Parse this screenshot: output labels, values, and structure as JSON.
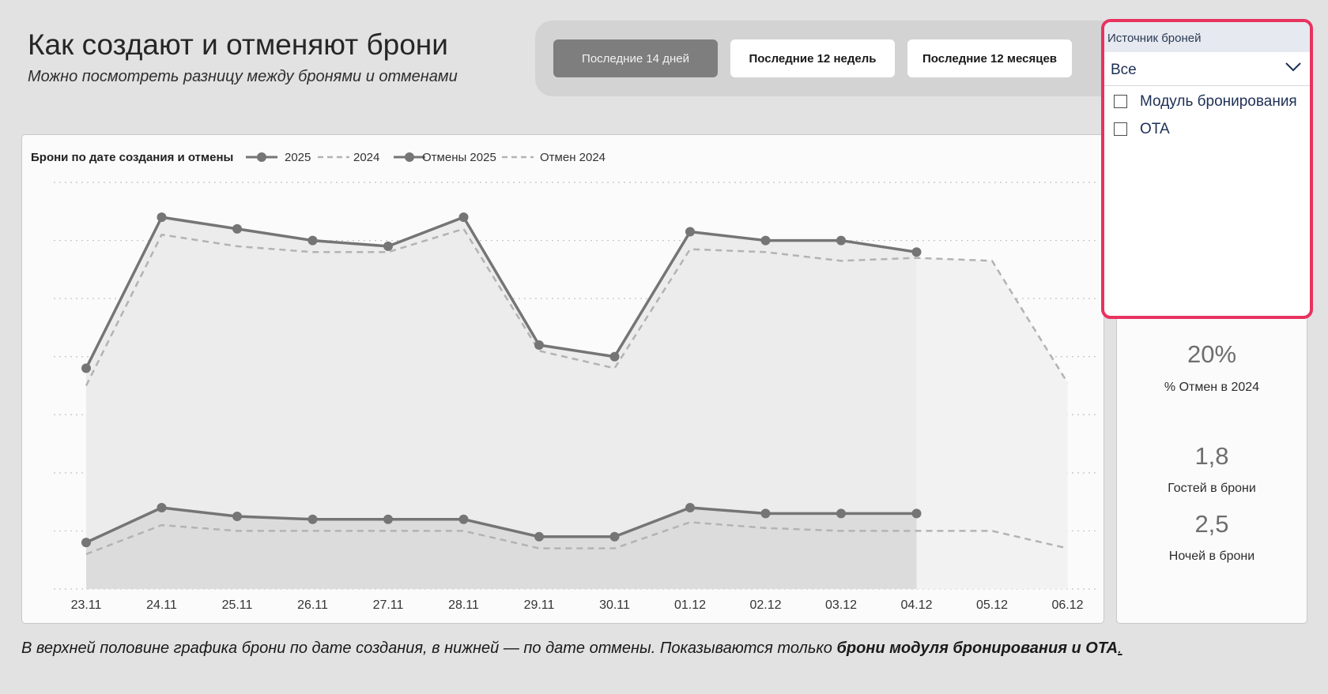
{
  "header": {
    "title": "Как создают и отменяют брони",
    "subtitle": "Можно посмотреть разницу между бронями и отменами"
  },
  "period_buttons": [
    {
      "label": "Последние 14 дней",
      "active": true
    },
    {
      "label": "Последние 12 недель",
      "active": false
    },
    {
      "label": "Последние 12 месяцев",
      "active": false
    }
  ],
  "slicer": {
    "title": "Источник броней",
    "selected": "Все",
    "options": [
      {
        "label": "Модуль бронирования",
        "checked": false
      },
      {
        "label": "OTA",
        "checked": false
      }
    ]
  },
  "kpis": [
    {
      "value": "20%",
      "label": "% Отмен в 2024"
    },
    {
      "value": "1,8",
      "label": "Гостей в брони"
    },
    {
      "value": "2,5",
      "label": "Ночей в брони"
    }
  ],
  "footnote": {
    "text": "В верхней половине графика брони по дате создания, в нижней — по дате отмены. Показываются только ",
    "bold": "брони модуля бронирования и OTA",
    "end": "."
  },
  "colors": {
    "line_2025": "#757575",
    "line_2024": "#b3b3b3",
    "area_top": "#ececec",
    "area_bottom": "#dcdcdc",
    "gridline": "#c4c4c4",
    "slicer_border": "#e8325f"
  },
  "chart_data": {
    "type": "line",
    "title": "Брони по дате создания и отмены",
    "categories": [
      "23.11",
      "24.11",
      "25.11",
      "26.11",
      "27.11",
      "28.11",
      "29.11",
      "30.11",
      "01.12",
      "02.12",
      "03.12",
      "04.12",
      "05.12",
      "06.12"
    ],
    "ylim": [
      0,
      7
    ],
    "grid": true,
    "legend_position": "top-left",
    "series": [
      {
        "name": "2025",
        "style": "solid-marker",
        "values": [
          3.8,
          6.4,
          6.2,
          6.0,
          5.9,
          6.4,
          4.2,
          4.0,
          6.15,
          6.0,
          6.0,
          5.8,
          null,
          null
        ]
      },
      {
        "name": "2024",
        "style": "dashed",
        "values": [
          3.5,
          6.1,
          5.9,
          5.8,
          5.8,
          6.2,
          4.1,
          3.8,
          5.85,
          5.8,
          5.65,
          5.7,
          5.65,
          3.55
        ]
      },
      {
        "name": "Отмены 2025",
        "style": "solid-marker",
        "values": [
          0.8,
          1.4,
          1.25,
          1.2,
          1.2,
          1.2,
          0.9,
          0.9,
          1.4,
          1.3,
          1.3,
          1.3,
          null,
          null
        ]
      },
      {
        "name": "Отмен 2024",
        "style": "dashed",
        "values": [
          0.6,
          1.1,
          1.0,
          1.0,
          1.0,
          1.0,
          0.7,
          0.7,
          1.15,
          1.05,
          1.0,
          1.0,
          1.0,
          0.7
        ]
      }
    ]
  }
}
